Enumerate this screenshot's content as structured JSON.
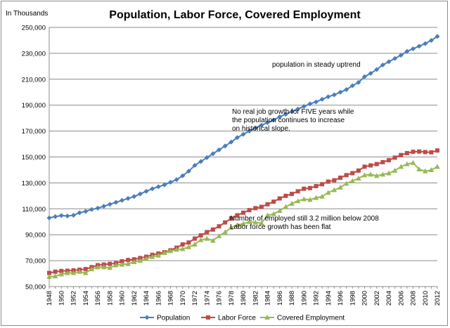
{
  "chart_data": {
    "type": "line",
    "title": "Population, Labor Force, Covered Employment",
    "ylabel": "In Thousands",
    "xlabel": "",
    "ylim": [
      50000,
      250000
    ],
    "yticks": [
      50000,
      70000,
      90000,
      110000,
      130000,
      150000,
      170000,
      190000,
      210000,
      230000,
      250000
    ],
    "ytick_labels": [
      "50,000",
      "70,000",
      "90,000",
      "110,000",
      "130,000",
      "150,000",
      "170,000",
      "190,000",
      "210,000",
      "230,000",
      "250,000"
    ],
    "x": [
      1948,
      1949,
      1950,
      1951,
      1952,
      1953,
      1954,
      1955,
      1956,
      1957,
      1958,
      1959,
      1960,
      1961,
      1962,
      1963,
      1964,
      1965,
      1966,
      1967,
      1968,
      1969,
      1970,
      1971,
      1972,
      1973,
      1974,
      1975,
      1976,
      1977,
      1978,
      1979,
      1980,
      1981,
      1982,
      1983,
      1984,
      1985,
      1986,
      1987,
      1988,
      1989,
      1990,
      1991,
      1992,
      1993,
      1994,
      1995,
      1996,
      1997,
      1998,
      1999,
      2000,
      2001,
      2002,
      2003,
      2004,
      2005,
      2006,
      2007,
      2008,
      2009,
      2010,
      2011,
      2012
    ],
    "xtick_labels": [
      "1948",
      "1950",
      "1952",
      "1954",
      "1956",
      "1958",
      "1960",
      "1962",
      "1964",
      "1966",
      "1968",
      "1970",
      "1972",
      "1974",
      "1976",
      "1978",
      "1980",
      "1982",
      "1984",
      "1986",
      "1988",
      "1990",
      "1992",
      "1994",
      "1996",
      "1998",
      "2000",
      "2002",
      "2004",
      "2006",
      "2008",
      "2010",
      "2012"
    ],
    "series": [
      {
        "name": "Population",
        "color": "#4a7ebb",
        "marker": "diamond",
        "values": [
          103000,
          104000,
          104800,
          104500,
          105000,
          107000,
          108000,
          109500,
          110500,
          112000,
          113500,
          115000,
          116500,
          118000,
          119500,
          121500,
          123500,
          125500,
          127000,
          128500,
          130500,
          132500,
          135500,
          139000,
          143500,
          146500,
          149500,
          152500,
          155500,
          158500,
          161500,
          165000,
          167500,
          170000,
          172500,
          174500,
          176500,
          178500,
          181000,
          183000,
          185000,
          187000,
          189000,
          191000,
          192500,
          194500,
          196500,
          198000,
          200000,
          202000,
          205000,
          207500,
          212000,
          214500,
          217500,
          221000,
          223500,
          226000,
          228500,
          231500,
          233500,
          235500,
          237500,
          240000,
          243000
        ]
      },
      {
        "name": "Labor Force",
        "color": "#be4b48",
        "marker": "square",
        "values": [
          60500,
          61500,
          62000,
          62200,
          62500,
          63000,
          63500,
          65000,
          66500,
          67000,
          67500,
          68000,
          69500,
          70500,
          71000,
          72000,
          73000,
          74500,
          75500,
          76500,
          78000,
          80000,
          82500,
          84000,
          87000,
          89500,
          92000,
          94000,
          96500,
          99500,
          102500,
          105000,
          107000,
          109000,
          110500,
          111500,
          113500,
          115500,
          118000,
          120000,
          121500,
          123500,
          125500,
          126000,
          127500,
          129000,
          131000,
          132000,
          134000,
          136000,
          137500,
          139500,
          142500,
          143500,
          144500,
          146000,
          147500,
          149500,
          151500,
          153000,
          154000,
          154200,
          153800,
          153600,
          155000
        ]
      },
      {
        "name": "Covered Employment",
        "color": "#98b954",
        "marker": "triangle",
        "values": [
          57500,
          58000,
          59500,
          60500,
          60500,
          61500,
          60500,
          63500,
          65000,
          65000,
          64500,
          66500,
          67000,
          67500,
          69000,
          70000,
          71500,
          73000,
          74000,
          76000,
          77500,
          78500,
          79000,
          80500,
          82500,
          86000,
          87000,
          85500,
          89000,
          92000,
          95500,
          97500,
          98500,
          100000,
          99500,
          99000,
          105000,
          106000,
          108500,
          111500,
          114000,
          116000,
          117500,
          117000,
          118500,
          119500,
          122500,
          124500,
          126500,
          129500,
          131500,
          133500,
          136000,
          136500,
          135500,
          136500,
          137500,
          139500,
          142500,
          144500,
          145500,
          140500,
          139000,
          140000,
          142500
        ]
      }
    ],
    "annotations": [
      "population in steady uptrend",
      "No real job growth for FIVE years while",
      "the population continues to increase",
      "on historical slope.",
      "Number of employed still 3.2  million below 2008",
      "Labor  force growth has been flat"
    ],
    "legend_position": "bottom"
  }
}
